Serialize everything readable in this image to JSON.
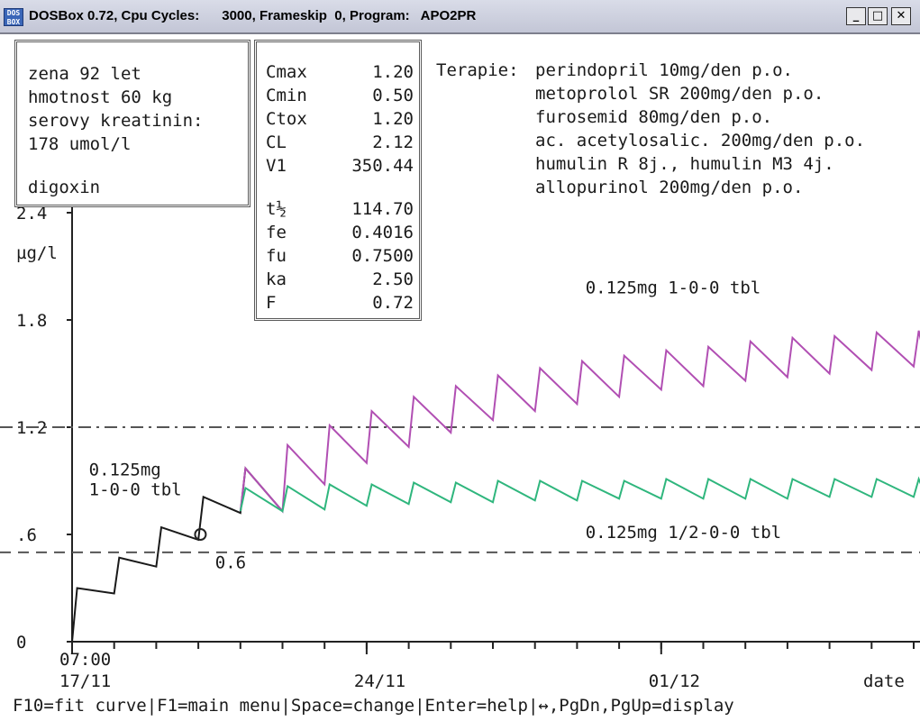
{
  "window": {
    "title": "DOSBox 0.72, Cpu Cycles:      3000, Frameskip  0, Program:   APO2PR",
    "icon_label": "DOS BOX",
    "minimize": "_",
    "maximize": "□",
    "close": "✕"
  },
  "patient": {
    "lines": [
      "zena 92 let",
      "hmotnost 60 kg",
      "serovy kreatinin:",
      "178 umol/l"
    ],
    "drug": "digoxin"
  },
  "params": {
    "rows": [
      {
        "k": "Cmax",
        "v": "1.20"
      },
      {
        "k": "Cmin",
        "v": "0.50"
      },
      {
        "k": "Ctox",
        "v": "1.20"
      },
      {
        "k": "CL",
        "v": "2.12"
      },
      {
        "k": "V1",
        "v": "350.44"
      },
      {
        "k": "t½",
        "v": "114.70"
      },
      {
        "k": "fe",
        "v": "0.4016"
      },
      {
        "k": "fu",
        "v": "0.7500"
      },
      {
        "k": "ka",
        "v": "2.50"
      },
      {
        "k": "F",
        "v": "0.72"
      }
    ]
  },
  "therapy": {
    "label": "Terapie:",
    "lines": [
      "perindopril 10mg/den p.o.",
      "metoprolol SR 200mg/den p.o.",
      "furosemid 80mg/den p.o.",
      "ac. acetylosalic. 200mg/den p.o.",
      "humulin R 8j., humulin M3 4j.",
      "allopurinol 200mg/den p.o."
    ]
  },
  "chart_data": {
    "type": "line",
    "ylabel": "µg/l",
    "ylabel_display": "µg/l",
    "ylim": [
      0,
      2.4
    ],
    "yticks": [
      {
        "value": 0,
        "label": "0"
      },
      {
        "value": 0.6,
        "label": ".6"
      },
      {
        "value": 1.2,
        "label": "1.2"
      },
      {
        "value": 1.8,
        "label": "1.8"
      },
      {
        "value": 2.4,
        "label": "2.4"
      }
    ],
    "xlabel": "date",
    "xlim_days": [
      0,
      20.3
    ],
    "xticks": [
      {
        "day": 0,
        "time": "07:00",
        "date": "17/11"
      },
      {
        "day": 7,
        "time": "",
        "date": "24/11"
      },
      {
        "day": 14,
        "time": "",
        "date": "01/12"
      }
    ],
    "reference_lines": [
      {
        "name": "Cmax",
        "value": 1.2
      },
      {
        "name": "Cmin",
        "value": 0.5
      }
    ],
    "series": [
      {
        "name": "",
        "color": "#1a1a1a",
        "doses_at_days": [
          0,
          1,
          2,
          3,
          4
        ],
        "peaks": [
          0.3,
          0.47,
          0.64,
          0.81,
          0.97
        ],
        "troughs": [
          0.27,
          0.42,
          0.57,
          0.72,
          0.73
        ]
      },
      {
        "name": "0.125mg 1-0-0 tbl",
        "color": "#b14fb3",
        "doses_at_days": [
          4,
          5,
          6,
          7,
          8,
          9,
          10,
          11,
          12,
          13,
          14,
          15,
          16,
          17,
          18,
          19,
          20
        ],
        "peaks": [
          0.97,
          1.1,
          1.21,
          1.29,
          1.37,
          1.43,
          1.49,
          1.53,
          1.57,
          1.6,
          1.63,
          1.65,
          1.68,
          1.7,
          1.71,
          1.73,
          1.74
        ],
        "troughs": [
          0.73,
          0.88,
          1.0,
          1.09,
          1.17,
          1.24,
          1.29,
          1.33,
          1.37,
          1.41,
          1.43,
          1.46,
          1.48,
          1.5,
          1.52,
          1.54,
          1.55
        ]
      },
      {
        "name": "0.125mg 1/2-0-0 tbl",
        "color": "#2fb67d",
        "doses_at_days": [
          4,
          5,
          6,
          7,
          8,
          9,
          10,
          11,
          12,
          13,
          14,
          15,
          16,
          17,
          18,
          19,
          20
        ],
        "peaks": [
          0.86,
          0.87,
          0.88,
          0.88,
          0.89,
          0.89,
          0.9,
          0.9,
          0.9,
          0.9,
          0.91,
          0.91,
          0.91,
          0.91,
          0.91,
          0.91,
          0.91
        ],
        "troughs": [
          0.73,
          0.74,
          0.76,
          0.77,
          0.78,
          0.78,
          0.79,
          0.79,
          0.8,
          0.8,
          0.8,
          0.8,
          0.8,
          0.81,
          0.81,
          0.81,
          0.81
        ]
      }
    ],
    "annotations": [
      {
        "text": "0.125mg",
        "day": 0.4,
        "y": 0.93
      },
      {
        "text": "1-0-0 tbl",
        "day": 0.4,
        "y": 0.82
      },
      {
        "text": "0.125mg 1-0-0 tbl",
        "day": 12.2,
        "y": 1.95
      },
      {
        "text": "0.125mg 1/2-0-0 tbl",
        "day": 12.2,
        "y": 0.58
      },
      {
        "text": "0.6",
        "day": 3.4,
        "y": 0.41
      }
    ],
    "marker": {
      "day": 3.05,
      "y": 0.6,
      "shape": "circle"
    }
  },
  "status_bar": {
    "text": "F10=fit curve|F1=main menu|Space=change|Enter=help|↔,PgDn,PgUp=display"
  }
}
